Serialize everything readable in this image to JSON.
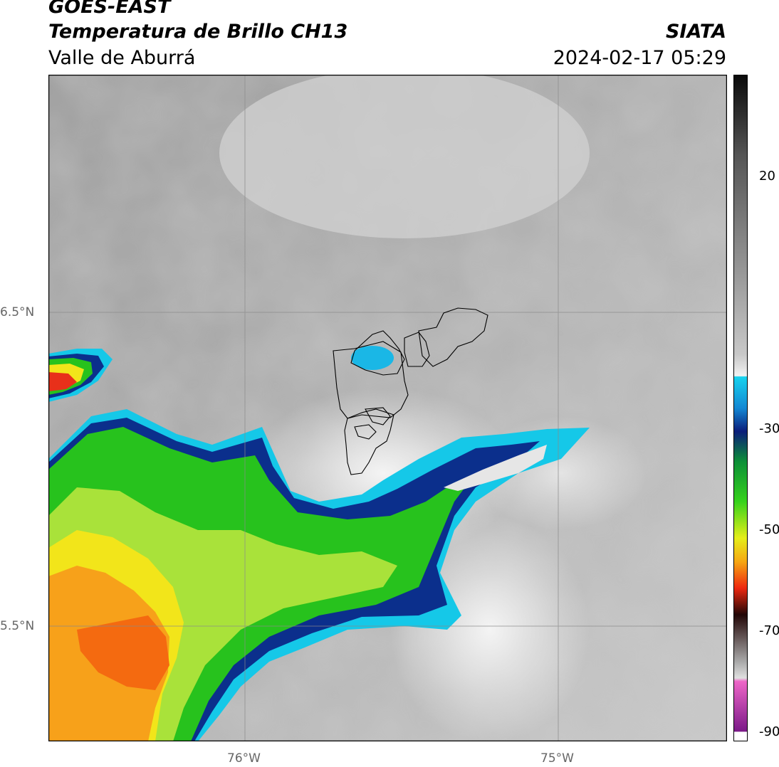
{
  "header": {
    "satellite": "GOES-EAST",
    "product": "Temperatura de Brillo CH13",
    "region": "Valle de Aburrá",
    "agency": "SIATA",
    "datetime": "2024-02-17 05:29"
  },
  "map": {
    "lat_ticks": [
      "6.5°N",
      "5.5°N"
    ],
    "lon_ticks": [
      "76°W",
      "75°W"
    ],
    "extent": {
      "lon_min": -76.62,
      "lon_max": -74.46,
      "lat_min": 5.12,
      "lat_max": 7.25
    }
  },
  "colorbar": {
    "ticks": [
      "20",
      "-30",
      "-50",
      "-70",
      "-90"
    ],
    "range": [
      -92,
      31
    ],
    "unit_hidden": "°C"
  }
}
